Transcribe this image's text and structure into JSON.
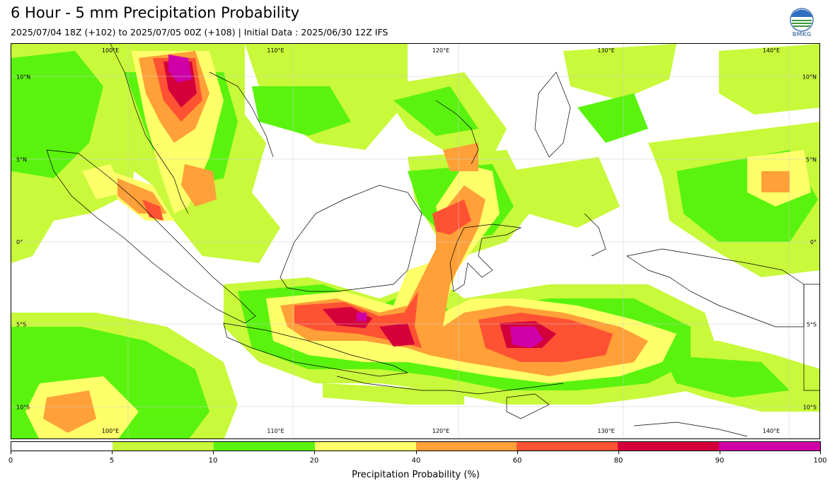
{
  "header": {
    "title": "6 Hour - 5 mm Precipitation Probability",
    "subtitle": "2025/07/04 18Z (+102) to 2025/07/05 00Z (+108) | Initial Data : 2025/06/30 12Z IFS"
  },
  "logo": {
    "label": "BMKG",
    "icon": "bmkg-logo-icon"
  },
  "map": {
    "lon_labels_top": [
      "100°E",
      "110°E",
      "120°E",
      "130°E",
      "140°E"
    ],
    "lon_labels_bottom": [
      "100°E",
      "110°E",
      "120°E",
      "130°E",
      "140°E"
    ],
    "lat_labels_left": [
      "10°N",
      "5°N",
      "0°",
      "5°S",
      "10°S"
    ],
    "lat_labels_right": [
      "10°N",
      "5°N",
      "0°",
      "5°S",
      "10°S"
    ],
    "extent": {
      "lon_min": 94,
      "lon_max": 143,
      "lat_min": -12,
      "lat_max": 12
    }
  },
  "colorbar": {
    "colors": [
      "#ffffff",
      "#c8f93a",
      "#5af30e",
      "#ffff6a",
      "#ffa038",
      "#ff5233",
      "#d4003a",
      "#cf00a8"
    ],
    "ticks": [
      "0",
      "5",
      "10",
      "20",
      "40",
      "60",
      "80",
      "90",
      "100"
    ],
    "label": "Precipitation Probability (%)"
  }
}
